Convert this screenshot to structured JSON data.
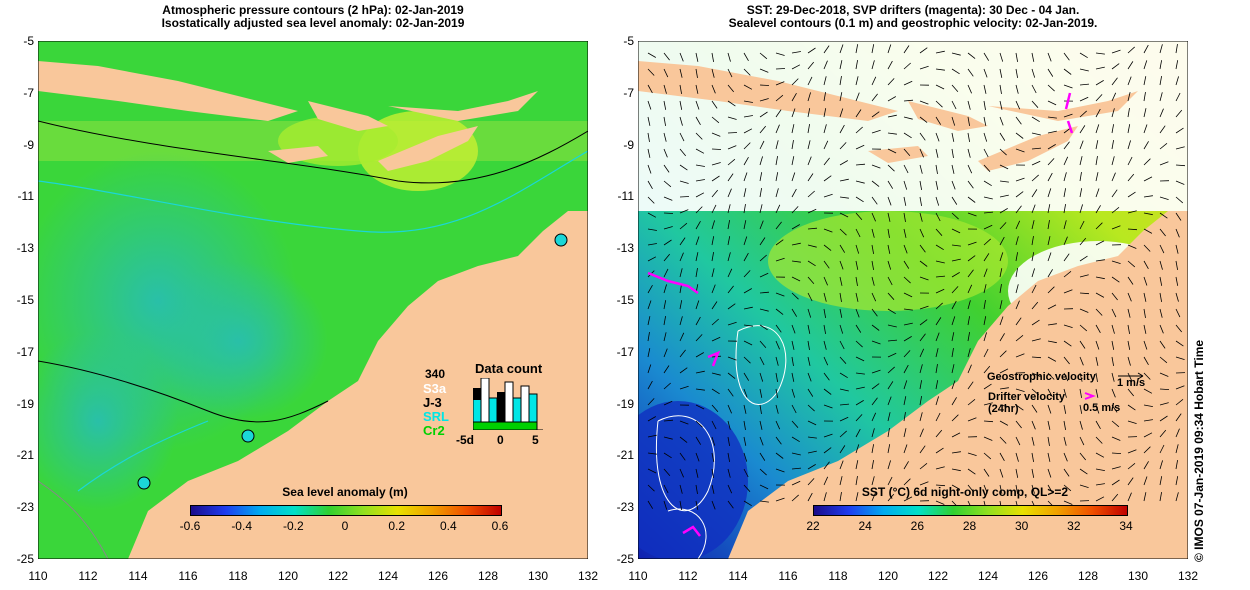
{
  "left_panel": {
    "title_line1": "Atmospheric pressure contours (2 hPa): 02-Jan-2019",
    "title_line2": "Isostatically adjusted sea level anomaly: 02-Jan-2019",
    "colorbar_title": "Sea level anomaly (m)",
    "colorbar_ticks": [
      "-0.6",
      "-0.4",
      "-0.2",
      "0",
      "0.2",
      "0.4",
      "0.6"
    ],
    "data_count": {
      "title": "Data count",
      "max_label": "340",
      "missions": [
        "S3a",
        "J-3",
        "SRL",
        "Cr2"
      ],
      "mission_colors": [
        "#ffffff",
        "#000000",
        "#00e6e6",
        "#00d000"
      ],
      "axis_ticks": [
        "-5d",
        "0",
        "5"
      ]
    }
  },
  "right_panel": {
    "title_line1": "SST: 29-Dec-2018, SVP drifters (magenta): 30 Dec - 04 Jan.",
    "title_line2": "Sealevel contours (0.1 m) and geostrophic velocity: 02-Jan-2019.",
    "colorbar_title": "SST (°C) 6d night-only comp, QL>=2",
    "colorbar_ticks": [
      "22",
      "24",
      "26",
      "28",
      "30",
      "32",
      "34"
    ],
    "legend": {
      "geostrophic_label": "Geostrophic velocity",
      "geostrophic_scale": "1 m/s",
      "drifter_label_line1": "Drifter velocity",
      "drifter_label_line2": "(24hr)",
      "drifter_scale": "0.5 m/s"
    }
  },
  "axes": {
    "lat_ticks": [
      "-5",
      "-7",
      "-9",
      "-11",
      "-13",
      "-15",
      "-17",
      "-19",
      "-21",
      "-23",
      "-25"
    ],
    "lon_ticks": [
      "110",
      "112",
      "114",
      "116",
      "118",
      "120",
      "122",
      "124",
      "126",
      "128",
      "130",
      "132"
    ]
  },
  "stamp": "© IMOS 07-Jan-2019 09:34 Hobart Time",
  "colors": {
    "land": "#f9c79b",
    "ocean_green": "#33d633",
    "ocean_cyan": "#2ec4a0",
    "drifter": "#ff00ff"
  }
}
